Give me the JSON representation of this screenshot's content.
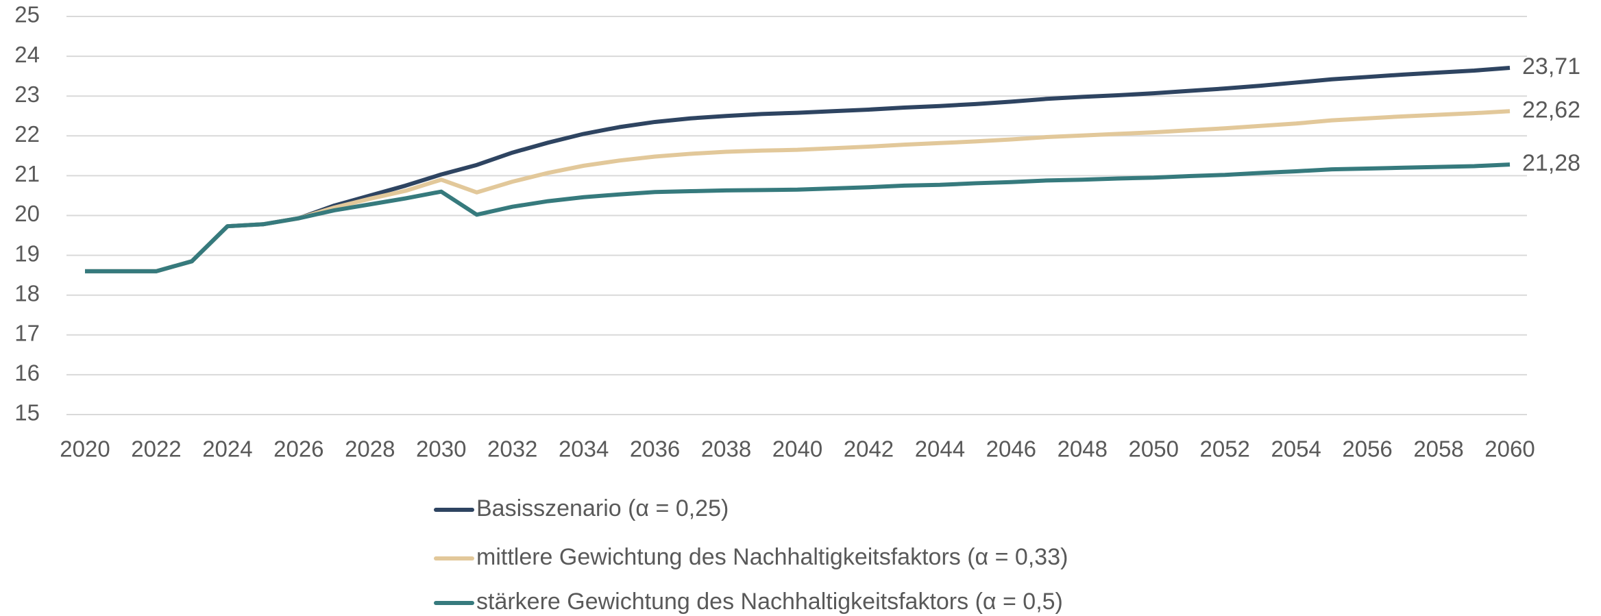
{
  "chart_data": {
    "type": "line",
    "x": [
      2020,
      2021,
      2022,
      2023,
      2024,
      2025,
      2026,
      2027,
      2028,
      2029,
      2030,
      2031,
      2032,
      2033,
      2034,
      2035,
      2036,
      2037,
      2038,
      2039,
      2040,
      2041,
      2042,
      2043,
      2044,
      2045,
      2046,
      2047,
      2048,
      2049,
      2050,
      2051,
      2052,
      2053,
      2054,
      2055,
      2056,
      2057,
      2058,
      2059,
      2060
    ],
    "xlim": [
      2020,
      2060
    ],
    "xticks": [
      2020,
      2022,
      2024,
      2026,
      2028,
      2030,
      2032,
      2034,
      2036,
      2038,
      2040,
      2042,
      2044,
      2046,
      2048,
      2050,
      2052,
      2054,
      2056,
      2058,
      2060
    ],
    "ylim": [
      15,
      25
    ],
    "yticks": [
      15,
      16,
      17,
      18,
      19,
      20,
      21,
      22,
      23,
      24,
      25
    ],
    "grid": true,
    "legend": "bottom",
    "series": [
      {
        "name": "Basisszenario (α = 0,25)",
        "color": "#2e4461",
        "values": [
          18.6,
          18.6,
          18.6,
          18.85,
          19.73,
          19.78,
          19.93,
          20.25,
          20.5,
          20.75,
          21.03,
          21.27,
          21.58,
          21.83,
          22.05,
          22.22,
          22.35,
          22.44,
          22.5,
          22.55,
          22.58,
          22.62,
          22.66,
          22.71,
          22.75,
          22.8,
          22.86,
          22.93,
          22.98,
          23.02,
          23.07,
          23.13,
          23.19,
          23.26,
          23.34,
          23.42,
          23.48,
          23.54,
          23.59,
          23.64,
          23.71
        ],
        "value_labels": [
          null,
          null,
          null,
          null,
          null,
          null,
          null,
          null,
          null,
          null,
          null,
          null,
          null,
          null,
          null,
          null,
          null,
          null,
          null,
          null,
          null,
          null,
          null,
          null,
          null,
          null,
          null,
          null,
          null,
          null,
          null,
          null,
          null,
          null,
          null,
          null,
          null,
          null,
          null,
          null,
          "23,71"
        ]
      },
      {
        "name": "mittlere Gewichtung des Nachhaltigkeitsfaktors (α = 0,33)",
        "color": "#e2c89a",
        "values": [
          18.6,
          18.6,
          18.6,
          18.85,
          19.73,
          19.78,
          19.93,
          20.2,
          20.42,
          20.62,
          20.9,
          20.58,
          20.85,
          21.07,
          21.25,
          21.38,
          21.48,
          21.55,
          21.6,
          21.63,
          21.65,
          21.69,
          21.73,
          21.78,
          21.82,
          21.86,
          21.91,
          21.97,
          22.01,
          22.05,
          22.09,
          22.14,
          22.19,
          22.25,
          22.31,
          22.39,
          22.44,
          22.49,
          22.53,
          22.57,
          22.62
        ],
        "value_labels": [
          null,
          null,
          null,
          null,
          null,
          null,
          null,
          null,
          null,
          null,
          null,
          null,
          null,
          null,
          null,
          null,
          null,
          null,
          null,
          null,
          null,
          null,
          null,
          null,
          null,
          null,
          null,
          null,
          null,
          null,
          null,
          null,
          null,
          null,
          null,
          null,
          null,
          null,
          null,
          null,
          "22,62"
        ]
      },
      {
        "name": "stärkere Gewichtung des Nachhaltigkeitsfaktors (α = 0,5)",
        "color": "#367a7d",
        "values": [
          18.6,
          18.6,
          18.6,
          18.85,
          19.73,
          19.78,
          19.93,
          20.13,
          20.28,
          20.43,
          20.6,
          20.02,
          20.22,
          20.36,
          20.46,
          20.53,
          20.59,
          20.61,
          20.63,
          20.64,
          20.65,
          20.68,
          20.71,
          20.75,
          20.77,
          20.81,
          20.84,
          20.88,
          20.9,
          20.93,
          20.95,
          20.99,
          21.02,
          21.07,
          21.11,
          21.16,
          21.18,
          21.2,
          21.22,
          21.24,
          21.28
        ],
        "value_labels": [
          null,
          null,
          null,
          null,
          null,
          null,
          null,
          null,
          null,
          null,
          null,
          null,
          null,
          null,
          null,
          null,
          null,
          null,
          null,
          null,
          null,
          null,
          null,
          null,
          null,
          null,
          null,
          null,
          null,
          null,
          null,
          null,
          null,
          null,
          null,
          null,
          null,
          null,
          null,
          null,
          "21,28"
        ]
      }
    ]
  }
}
